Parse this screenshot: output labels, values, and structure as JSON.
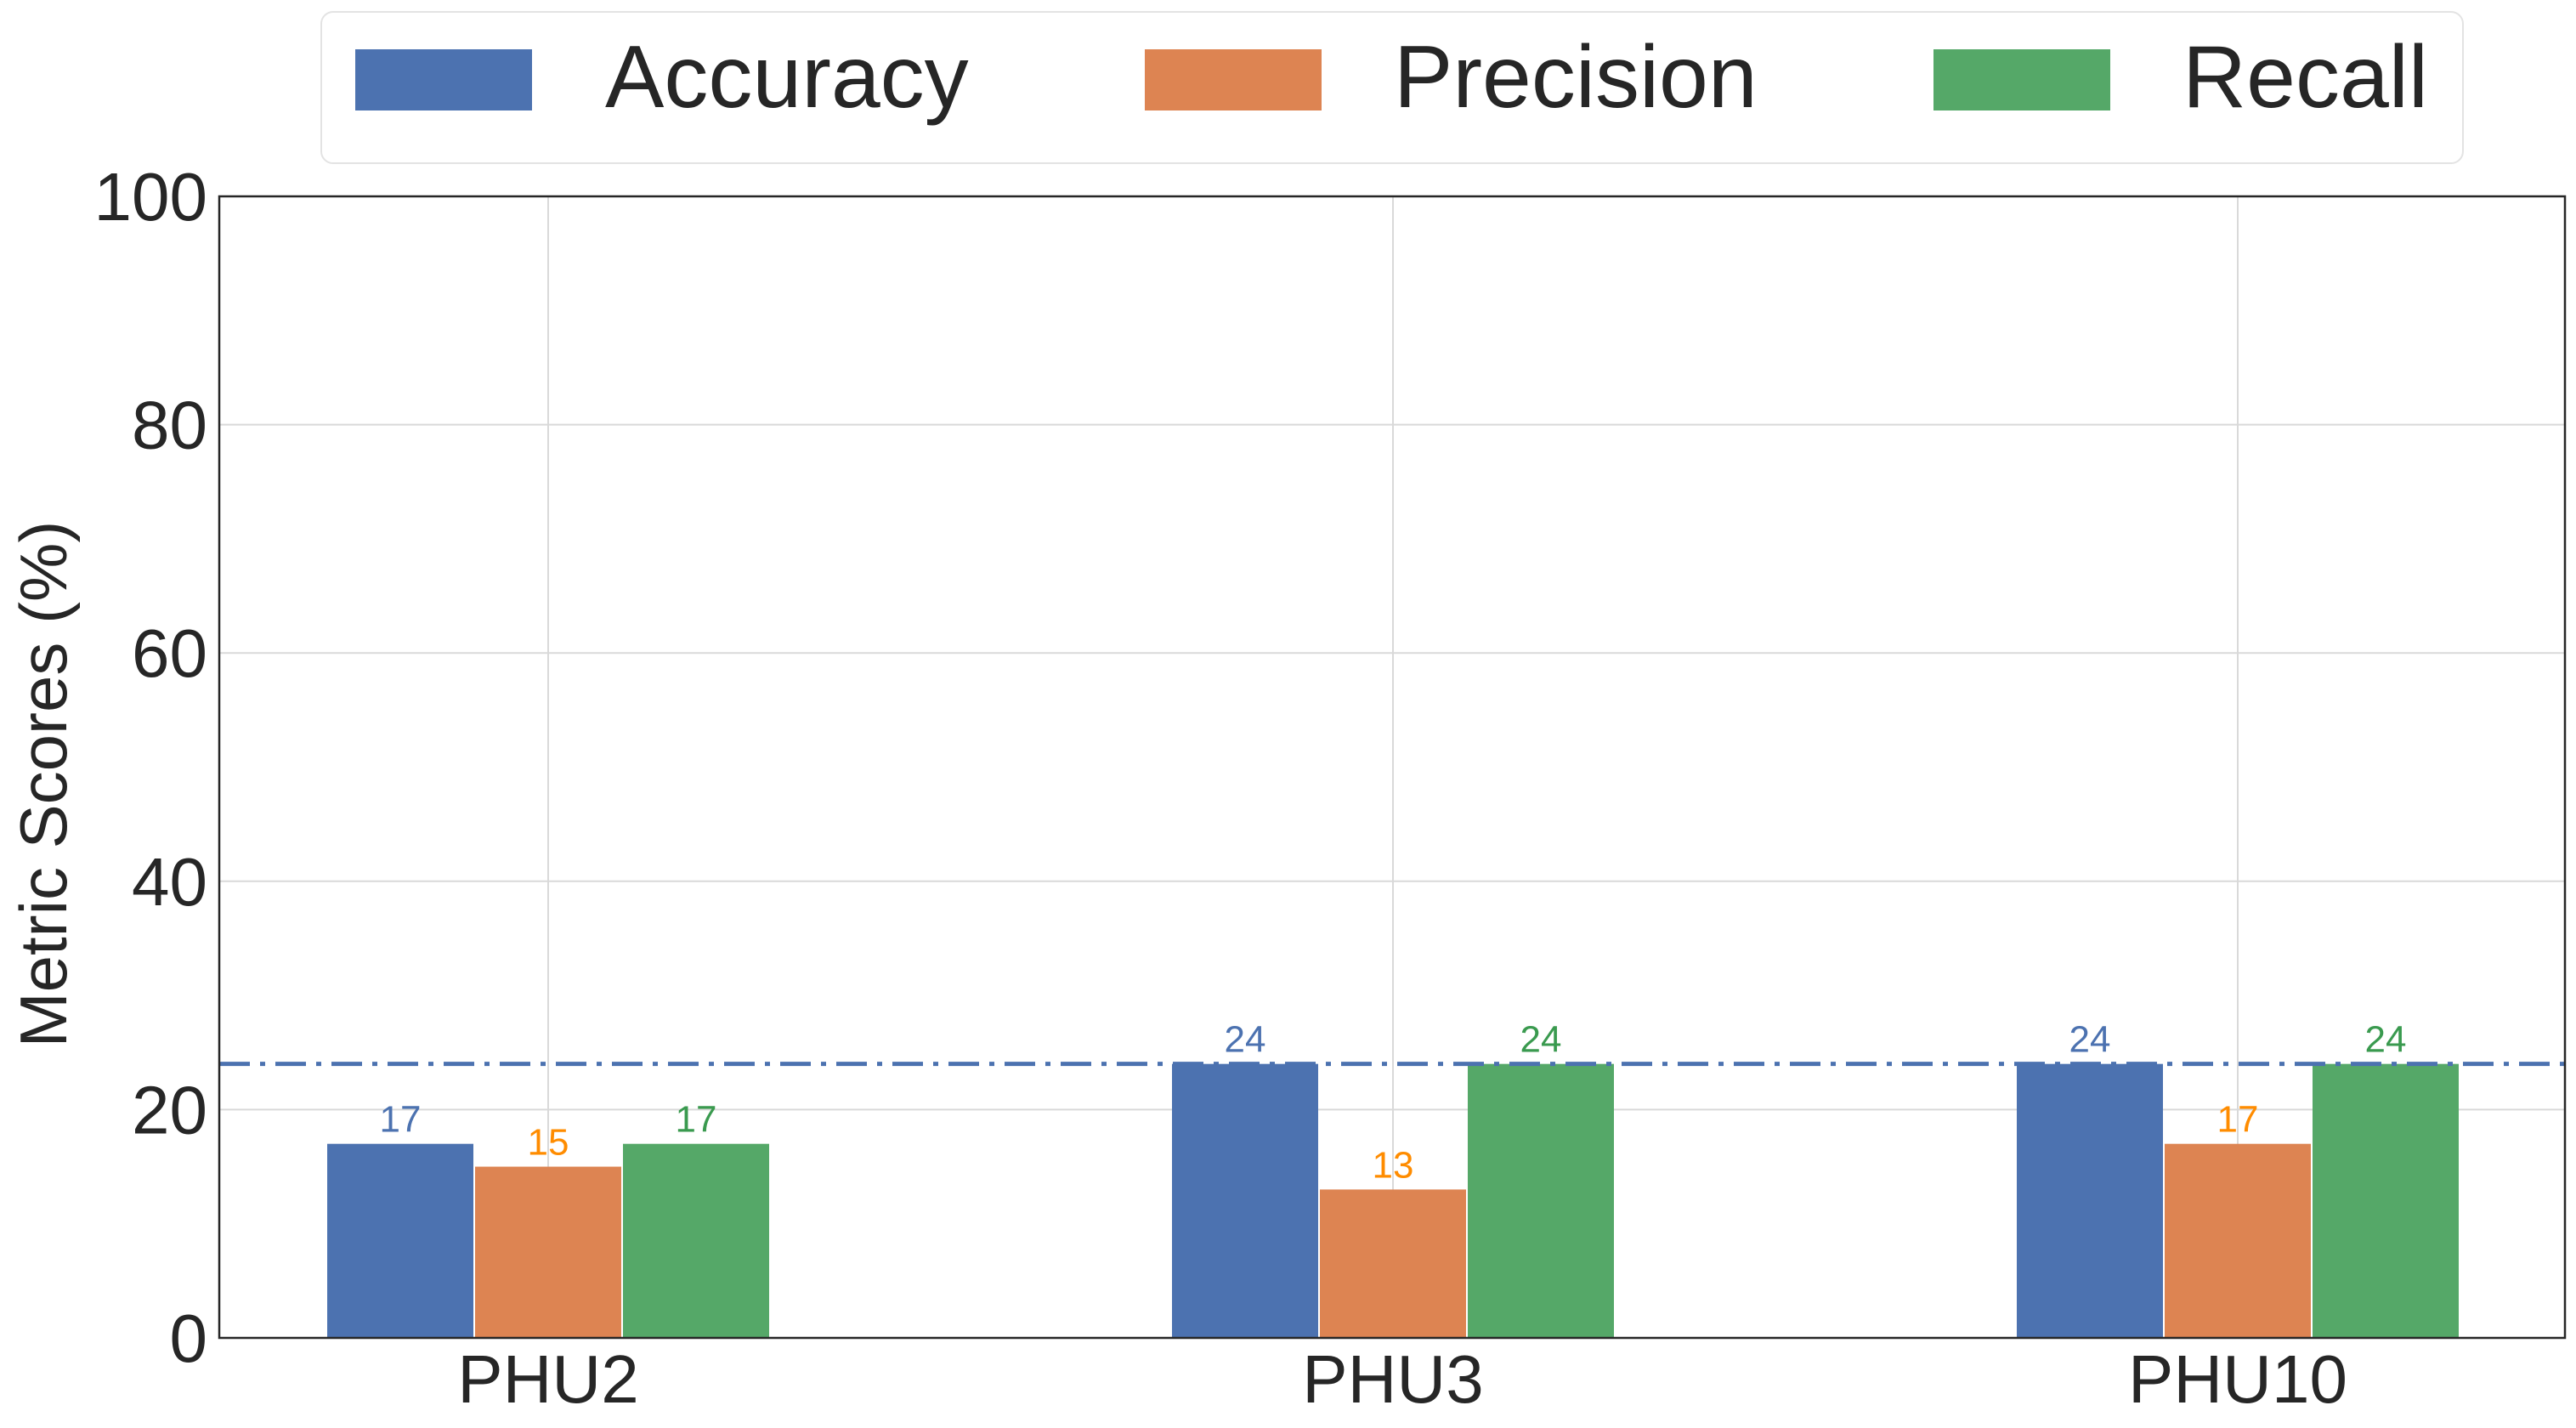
{
  "chart_data": {
    "type": "bar",
    "title": "",
    "xlabel": "",
    "ylabel": "Metric Scores (%)",
    "categories": [
      "PHU2",
      "PHU3",
      "PHU10"
    ],
    "series": [
      {
        "name": "Accuracy",
        "values": [
          17,
          24,
          24
        ],
        "color": "#4C72B0",
        "label_color": "#4C72B0"
      },
      {
        "name": "Precision",
        "values": [
          15,
          13,
          17
        ],
        "color": "#DD8452",
        "label_color": "#FF8C00"
      },
      {
        "name": "Recall",
        "values": [
          17,
          24,
          24
        ],
        "color": "#55A868",
        "label_color": "#3A9A4F"
      }
    ],
    "ylim": [
      0,
      100
    ],
    "yticks": [
      0,
      20,
      40,
      60,
      80,
      100
    ],
    "reference_line": {
      "value": 24,
      "style": "dashdot",
      "color": "#4C72B0"
    },
    "grid": true,
    "legend_position": "top-center",
    "data_labels": true
  }
}
